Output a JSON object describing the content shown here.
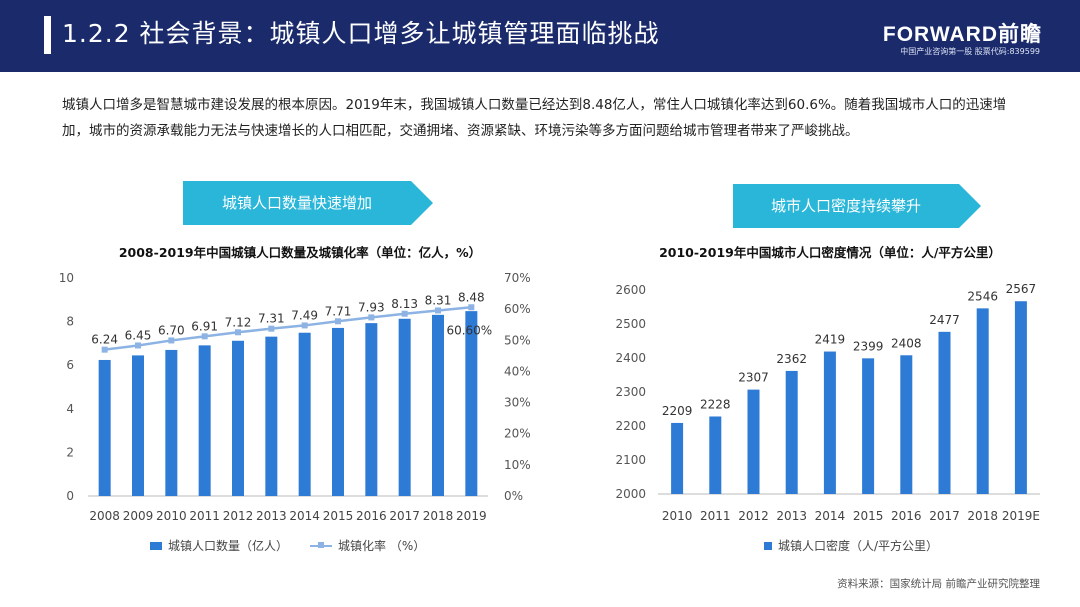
{
  "header": {
    "title": "1.2.2 社会背景：城镇人口增多让城镇管理面临挑战",
    "brand": "FORWARD前瞻",
    "brand_sub": "中国产业咨询第一股 股票代码:839599"
  },
  "intro": "城镇人口增多是智慧城市建设发展的根本原因。2019年末，我国城镇人口数量已经达到8.48亿人，常住人口城镇化率达到60.6%。随着我国城市人口的迅速增加，城市的资源承载能力无法与快速增长的人口相匹配，交通拥堵、资源紧缺、环境污染等多方面问题给城市管理者带来了严峻挑战。",
  "banners": {
    "left": "城镇人口数量快速增加",
    "right": "城市人口密度持续攀升"
  },
  "colors": {
    "bar": "#2e7bd6",
    "line": "#8cb3e3",
    "header": "#1a2a6b",
    "banner": "#29b6d8"
  },
  "chart_data": [
    {
      "type": "bar",
      "title": "2008-2019年中国城镇人口数量及城镇化率（单位：亿人，%）",
      "categories": [
        "2008",
        "2009",
        "2010",
        "2011",
        "2012",
        "2013",
        "2014",
        "2015",
        "2016",
        "2017",
        "2018",
        "2019"
      ],
      "series": [
        {
          "name": "城镇人口数量（亿人）",
          "type": "bar",
          "values": [
            6.24,
            6.45,
            6.7,
            6.91,
            7.12,
            7.31,
            7.49,
            7.71,
            7.93,
            8.13,
            8.31,
            8.48
          ]
        },
        {
          "name": "城镇化率 （%）",
          "type": "line",
          "axis": "right",
          "values": [
            46.99,
            48.34,
            49.95,
            51.27,
            52.57,
            53.73,
            54.77,
            56.1,
            57.35,
            58.52,
            59.58,
            60.6
          ]
        }
      ],
      "data_labels": [
        "6.24",
        "6.45",
        "6.70",
        "6.91",
        "7.12",
        "7.31",
        "7.49",
        "7.71",
        "7.93",
        "8.13",
        "8.31",
        "8.48"
      ],
      "line_label": "60.60%",
      "ylim": [
        0,
        10
      ],
      "yticks": [
        "0",
        "2",
        "4",
        "6",
        "8",
        "10"
      ],
      "y2lim": [
        0,
        70
      ],
      "y2ticks": [
        "0%",
        "10%",
        "20%",
        "30%",
        "40%",
        "50%",
        "60%",
        "70%"
      ],
      "legend_position": "bottom"
    },
    {
      "type": "bar",
      "title": "2010-2019年中国城市人口密度情况（单位：人/平方公里）",
      "categories": [
        "2010",
        "2011",
        "2012",
        "2013",
        "2014",
        "2015",
        "2016",
        "2017",
        "2018",
        "2019E"
      ],
      "series": [
        {
          "name": "城镇人口密度（人/平方公里）",
          "values": [
            2209,
            2228,
            2307,
            2362,
            2419,
            2399,
            2408,
            2477,
            2546,
            2567
          ]
        }
      ],
      "ylim": [
        2000,
        2600
      ],
      "yticks": [
        "2000",
        "2100",
        "2200",
        "2300",
        "2400",
        "2500",
        "2600"
      ],
      "legend_position": "bottom"
    }
  ],
  "source": "资料来源：国家统计局 前瞻产业研究院整理"
}
